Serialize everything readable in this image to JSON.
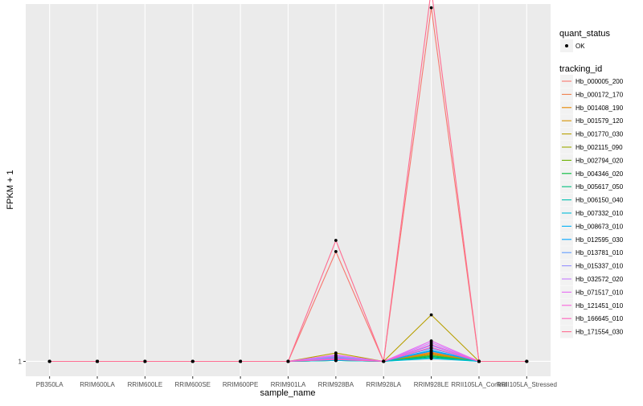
{
  "chart_data": {
    "type": "line",
    "title": "",
    "xlabel": "sample_name",
    "ylabel": "FPKM + 1",
    "y_ticks": [
      {
        "value": 1,
        "label": "1"
      }
    ],
    "ylim": [
      0.2,
      20.2
    ],
    "grid": true,
    "panel_background": "#ebebeb",
    "grid_color": "#ffffff",
    "categories": [
      "PB350LA",
      "RRIM600LA",
      "RRIM600LE",
      "RRIM600SE",
      "RRIM600PE",
      "RRIM901LA",
      "RRIM928BA",
      "RRIM928LA",
      "RRIM928LE",
      "RRII105LA_Control",
      "RRII105LA_Stressed"
    ],
    "legend_position": "right",
    "legend_quant": {
      "title": "quant_status",
      "items": [
        {
          "label": "OK",
          "shape": "point",
          "color": "#000000"
        }
      ]
    },
    "legend_tracking": {
      "title": "tracking_id"
    },
    "series": [
      {
        "name": "Hb_000005_200",
        "color": "#F8766D",
        "values": [
          1,
          1,
          1,
          1,
          1,
          1,
          6.9,
          1,
          20.0,
          1,
          1
        ]
      },
      {
        "name": "Hb_000172_170",
        "color": "#F07F4C",
        "values": [
          1,
          1,
          1,
          1,
          1,
          1,
          1.25,
          1,
          1.5,
          1,
          1
        ]
      },
      {
        "name": "Hb_001408_190",
        "color": "#E58700",
        "values": [
          1,
          1,
          1,
          1,
          1,
          1,
          1.2,
          1,
          1.45,
          1,
          1
        ]
      },
      {
        "name": "Hb_001579_120",
        "color": "#D49200",
        "values": [
          1,
          1,
          1,
          1,
          1,
          1,
          1.15,
          1,
          1.4,
          1,
          1
        ]
      },
      {
        "name": "Hb_001770_030",
        "color": "#B79F00",
        "values": [
          1,
          1,
          1,
          1,
          1,
          1,
          1.45,
          1,
          3.5,
          1,
          1
        ]
      },
      {
        "name": "Hb_002115_090",
        "color": "#9AA800",
        "values": [
          1,
          1,
          1,
          1,
          1,
          1,
          1.1,
          1,
          1.35,
          1,
          1
        ]
      },
      {
        "name": "Hb_002794_020",
        "color": "#6BB100",
        "values": [
          1,
          1,
          1,
          1,
          1,
          1,
          1.05,
          1,
          1.3,
          1,
          1
        ]
      },
      {
        "name": "Hb_004346_020",
        "color": "#00BA38",
        "values": [
          1,
          1,
          1,
          1,
          1,
          1,
          1.05,
          1,
          1.25,
          1,
          1
        ]
      },
      {
        "name": "Hb_005617_050",
        "color": "#00BF7D",
        "values": [
          1,
          1,
          1,
          1,
          1,
          1,
          1.1,
          1,
          1.3,
          1,
          1
        ]
      },
      {
        "name": "Hb_006150_040",
        "color": "#00C0AF",
        "values": [
          1,
          1,
          1,
          1,
          1,
          1,
          1.05,
          1,
          1.2,
          1,
          1
        ]
      },
      {
        "name": "Hb_007332_010",
        "color": "#00BCD8",
        "values": [
          1,
          1,
          1,
          1,
          1,
          1,
          1.05,
          1,
          1.15,
          1,
          1
        ]
      },
      {
        "name": "Hb_008673_010",
        "color": "#00B0F6",
        "values": [
          1,
          1,
          1,
          1,
          1,
          1,
          1.1,
          1,
          1.55,
          1,
          1
        ]
      },
      {
        "name": "Hb_012595_030",
        "color": "#00A5FF",
        "values": [
          1,
          1,
          1,
          1,
          1,
          1,
          1.15,
          1,
          1.6,
          1,
          1
        ]
      },
      {
        "name": "Hb_013781_010",
        "color": "#619CFF",
        "values": [
          1,
          1,
          1,
          1,
          1,
          1,
          1.2,
          1,
          1.7,
          1,
          1
        ]
      },
      {
        "name": "Hb_015337_010",
        "color": "#9590FF",
        "values": [
          1,
          1,
          1,
          1,
          1,
          1,
          1.25,
          1,
          1.85,
          1,
          1
        ]
      },
      {
        "name": "Hb_032572_020",
        "color": "#C77CFF",
        "values": [
          1,
          1,
          1,
          1,
          1,
          1,
          1.3,
          1,
          2.0,
          1,
          1
        ]
      },
      {
        "name": "Hb_071517_010",
        "color": "#E76BF3",
        "values": [
          1,
          1,
          1,
          1,
          1,
          1,
          1.35,
          1,
          2.1,
          1,
          1
        ]
      },
      {
        "name": "Hb_121451_010",
        "color": "#FA62DB",
        "values": [
          1,
          1,
          1,
          1,
          1,
          1,
          1.15,
          1,
          1.9,
          1,
          1
        ]
      },
      {
        "name": "Hb_166645_010",
        "color": "#FF62BC",
        "values": [
          1,
          1,
          1,
          1,
          1,
          1,
          1.1,
          1,
          1.75,
          1,
          1
        ]
      },
      {
        "name": "Hb_171554_030",
        "color": "#FF6C91",
        "values": [
          1,
          1,
          1,
          1,
          1,
          1,
          7.5,
          1,
          21.0,
          1,
          1
        ]
      }
    ]
  }
}
